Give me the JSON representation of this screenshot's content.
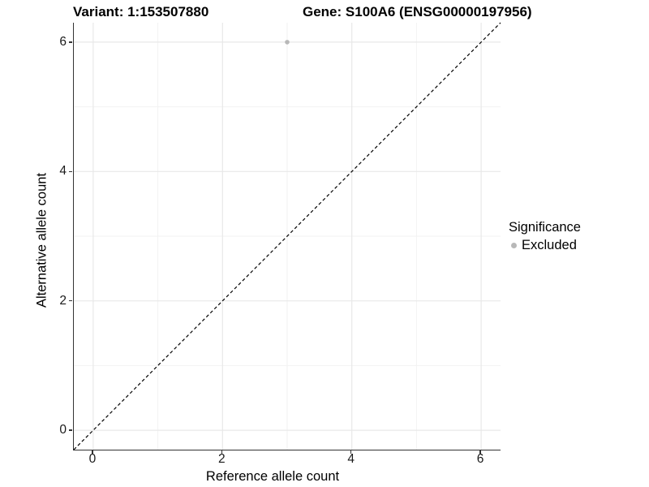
{
  "chart_data": {
    "type": "scatter",
    "titles": {
      "left": "Variant: 1:153507880",
      "right": "Gene: S100A6 (ENSG00000197956)"
    },
    "xlabel": "Reference allele count",
    "ylabel": "Alternative allele count",
    "xlim": [
      -0.3,
      6.3
    ],
    "ylim": [
      -0.3,
      6.3
    ],
    "x_ticks": [
      0,
      2,
      4,
      6
    ],
    "y_ticks": [
      0,
      2,
      4,
      6
    ],
    "x_minor_gridlines": [
      1,
      3,
      5
    ],
    "y_minor_gridlines": [
      1,
      3,
      5
    ],
    "grid": "on",
    "series": [
      {
        "name": "Excluded",
        "color": "#b8b8b8",
        "points": [
          {
            "x": 3,
            "y": 6
          }
        ]
      }
    ],
    "reference_line": {
      "description": "identity line y = x",
      "slope": 1,
      "intercept": 0,
      "style": "dashed",
      "color": "#000000"
    },
    "legend": {
      "title": "Significance",
      "position": "right",
      "items": [
        {
          "label": "Excluded",
          "color": "#b8b8b8"
        }
      ]
    },
    "colors": {
      "background": "#ffffff",
      "grid_major": "#e8e8e8",
      "grid_minor": "#f2f2f2",
      "axis_line": "#333333",
      "tick_text": "#1a1a1a"
    }
  }
}
